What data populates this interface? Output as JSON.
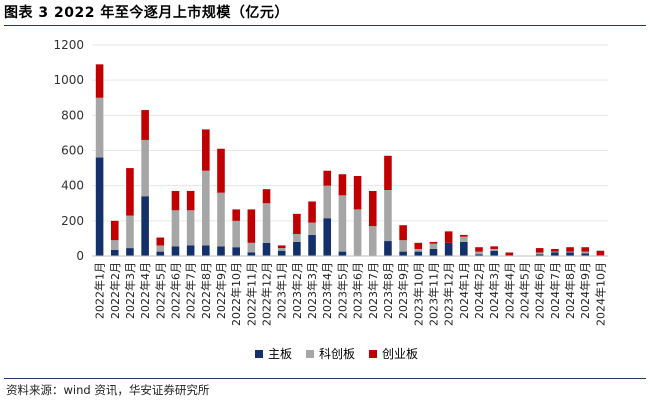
{
  "title": "图表 3 2022 年至今逐月上市规模（亿元）",
  "source": "资料来源：wind 资讯，华安证券研究所",
  "colors": {
    "main": "#13306b",
    "kcb": "#a6a6a6",
    "cyb": "#c00000",
    "axis": "#bfbfbf",
    "grid": "#e6e6e6"
  },
  "chart_data": {
    "type": "bar",
    "stacked": true,
    "title": "",
    "xlabel": "",
    "ylabel": "",
    "ylim": [
      0,
      1200
    ],
    "yticks": [
      0,
      200,
      400,
      600,
      800,
      1000,
      1200
    ],
    "grid": true,
    "legend_position": "bottom",
    "categories": [
      "2022年1月",
      "2022年2月",
      "2022年3月",
      "2022年4月",
      "2022年5月",
      "2022年6月",
      "2022年7月",
      "2022年8月",
      "2022年9月",
      "2022年10月",
      "2022年11月",
      "2022年12月",
      "2023年1月",
      "2023年2月",
      "2023年3月",
      "2023年4月",
      "2023年5月",
      "2023年6月",
      "2023年7月",
      "2023年8月",
      "2023年9月",
      "2023年10月",
      "2023年11月",
      "2023年12月",
      "2024年1月",
      "2024年2月",
      "2024年3月",
      "2024年4月",
      "2024年5月",
      "2024年6月",
      "2024年7月",
      "2024年8月",
      "2024年9月",
      "2024年10月"
    ],
    "series": [
      {
        "name": "主板",
        "key": "main",
        "values": [
          560,
          35,
          45,
          340,
          25,
          55,
          60,
          60,
          55,
          50,
          20,
          75,
          30,
          80,
          120,
          215,
          25,
          0,
          0,
          85,
          25,
          25,
          40,
          75,
          80,
          10,
          30,
          5,
          0,
          10,
          20,
          20,
          15,
          5
        ]
      },
      {
        "name": "科创板",
        "key": "kcb",
        "values": [
          340,
          55,
          185,
          320,
          35,
          205,
          200,
          425,
          305,
          150,
          55,
          225,
          15,
          45,
          70,
          185,
          320,
          265,
          170,
          290,
          65,
          15,
          30,
          0,
          30,
          15,
          10,
          0,
          0,
          10,
          5,
          5,
          10,
          0
        ]
      },
      {
        "name": "创业板",
        "key": "cyb",
        "values": [
          190,
          110,
          270,
          170,
          45,
          110,
          110,
          235,
          250,
          65,
          190,
          80,
          15,
          115,
          120,
          85,
          120,
          190,
          200,
          195,
          85,
          35,
          10,
          65,
          10,
          25,
          15,
          15,
          0,
          25,
          15,
          25,
          25,
          25
        ]
      }
    ]
  }
}
